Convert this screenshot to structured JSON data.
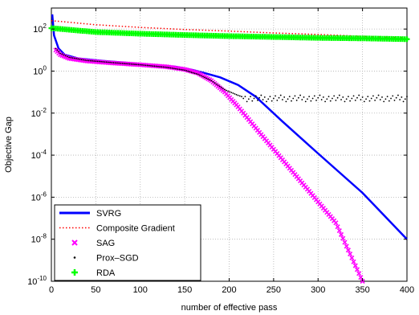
{
  "chart_data": {
    "type": "line",
    "title": "",
    "xlabel": "number of effective pass",
    "ylabel": "Objective Gap",
    "xlim": [
      0,
      400
    ],
    "ylim_exponent": [
      -10,
      3
    ],
    "yscale": "log",
    "grid": true,
    "legend_position": "bottom-left",
    "x_ticks": [
      "0",
      "50",
      "100",
      "150",
      "200",
      "250",
      "300",
      "350",
      "400"
    ],
    "y_ticks": [
      {
        "base": "10",
        "exp": "2",
        "value": 100
      },
      {
        "base": "10",
        "exp": "0",
        "value": 1
      },
      {
        "base": "10",
        "exp": "-2",
        "value": 0.01
      },
      {
        "base": "10",
        "exp": "-4",
        "value": 0.0001
      },
      {
        "base": "10",
        "exp": "-6",
        "value": 1e-06
      },
      {
        "base": "10",
        "exp": "-8",
        "value": 1e-08
      },
      {
        "base": "10",
        "exp": "-10",
        "value": 1e-10
      }
    ],
    "series": [
      {
        "name": "SVRG",
        "color": "#0000ff",
        "style": "solid-thick",
        "x": [
          1,
          3,
          8,
          15,
          30,
          60,
          100,
          140,
          160,
          175,
          190,
          210,
          230,
          260,
          300,
          350,
          400
        ],
        "y": [
          500,
          50,
          12,
          6,
          4,
          3,
          2.2,
          1.6,
          1.1,
          0.75,
          0.5,
          0.22,
          0.06,
          0.004,
          0.00012,
          1.6e-06,
          1e-08
        ]
      },
      {
        "name": "Composite Gradient",
        "color": "#ff0000",
        "style": "dotted",
        "x": [
          0,
          50,
          100,
          150,
          200,
          250,
          300,
          350,
          400
        ],
        "y": [
          250,
          160,
          120,
          95,
          80,
          65,
          55,
          45,
          38
        ]
      },
      {
        "name": "SAG",
        "color": "#ff00ff",
        "style": "cross-markers",
        "x": [
          5,
          10,
          20,
          40,
          70,
          100,
          130,
          150,
          165,
          180,
          195,
          210,
          240,
          280,
          320,
          350
        ],
        "y": [
          10,
          6,
          4,
          3,
          2.4,
          2,
          1.6,
          1.2,
          0.8,
          0.35,
          0.1,
          0.02,
          0.0006,
          6e-06,
          6e-08,
          1e-10
        ]
      },
      {
        "name": "Prox–SGD",
        "color": "#000000",
        "style": "dot-markers",
        "x": [
          5,
          10,
          20,
          40,
          70,
          100,
          130,
          150,
          165,
          180,
          195,
          210,
          220,
          240,
          280,
          320,
          360,
          400
        ],
        "y": [
          12,
          7,
          4.5,
          3.2,
          2.5,
          2,
          1.5,
          1.1,
          0.7,
          0.35,
          0.13,
          0.07,
          0.05,
          0.05,
          0.05,
          0.05,
          0.05,
          0.05
        ]
      },
      {
        "name": "RDA",
        "color": "#00ff00",
        "style": "plus-markers",
        "x": [
          0,
          50,
          100,
          150,
          200,
          250,
          300,
          350,
          400
        ],
        "y": [
          110,
          72,
          60,
          52,
          46,
          42,
          38,
          36,
          33
        ]
      }
    ]
  }
}
